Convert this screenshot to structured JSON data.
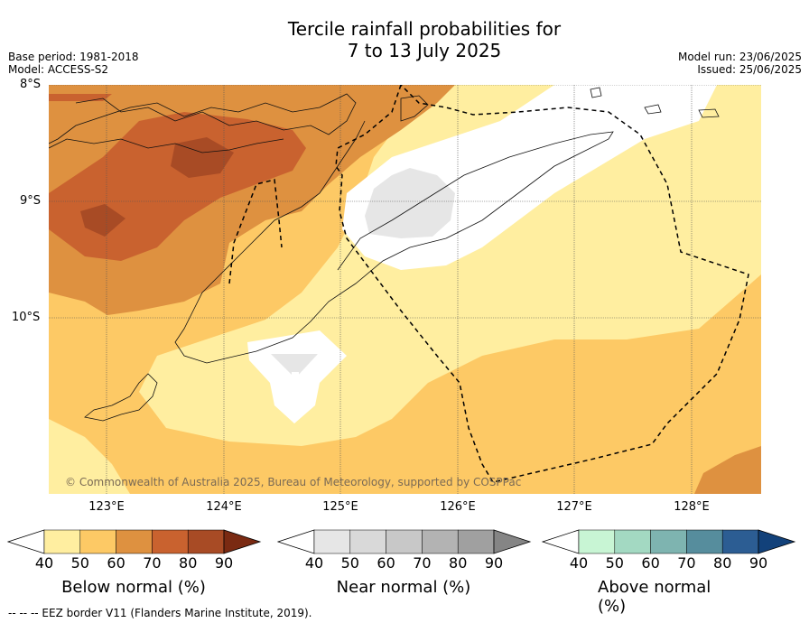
{
  "title": {
    "line1": "Tercile rainfall probabilities for",
    "line2": "7 to 13 July 2025"
  },
  "meta": {
    "base_period": "Base period: 1981-2018",
    "model": "Model: ACCESS-S2",
    "model_run": "Model run: 23/06/2025",
    "issued": "Issued: 25/06/2025"
  },
  "map": {
    "lat_labels": [
      "8°S",
      "9°S",
      "10°S"
    ],
    "lon_labels": [
      "123°E",
      "124°E",
      "125°E",
      "126°E",
      "127°E",
      "128°E"
    ],
    "copyright": "© Commonwealth of Australia 2025, Bureau of Meteorology, supported by COSPPac"
  },
  "colorbars": [
    {
      "label": "Below normal (%)",
      "ticks": [
        "40",
        "50",
        "60",
        "70",
        "80",
        "90"
      ],
      "colors": [
        "#ffeea0",
        "#fdc965",
        "#de9140",
        "#c9622f",
        "#a84b25",
        "#7a2a12"
      ]
    },
    {
      "label": "Near normal (%)",
      "ticks": [
        "40",
        "50",
        "60",
        "70",
        "80",
        "90"
      ],
      "colors": [
        "#e6e6e6",
        "#d9d9d9",
        "#c8c8c8",
        "#b3b3b3",
        "#a0a0a0",
        "#858585"
      ]
    },
    {
      "label": "Above normal (%)",
      "ticks": [
        "40",
        "50",
        "60",
        "70",
        "80",
        "90"
      ],
      "colors": [
        "#c8f5d4",
        "#a3d9c2",
        "#7eb4b0",
        "#568d9d",
        "#2c5d93",
        "#12417a"
      ]
    }
  ],
  "legend_note": "--  --  -- EEZ border V11 (Flanders Marine Institute, 2019)."
}
